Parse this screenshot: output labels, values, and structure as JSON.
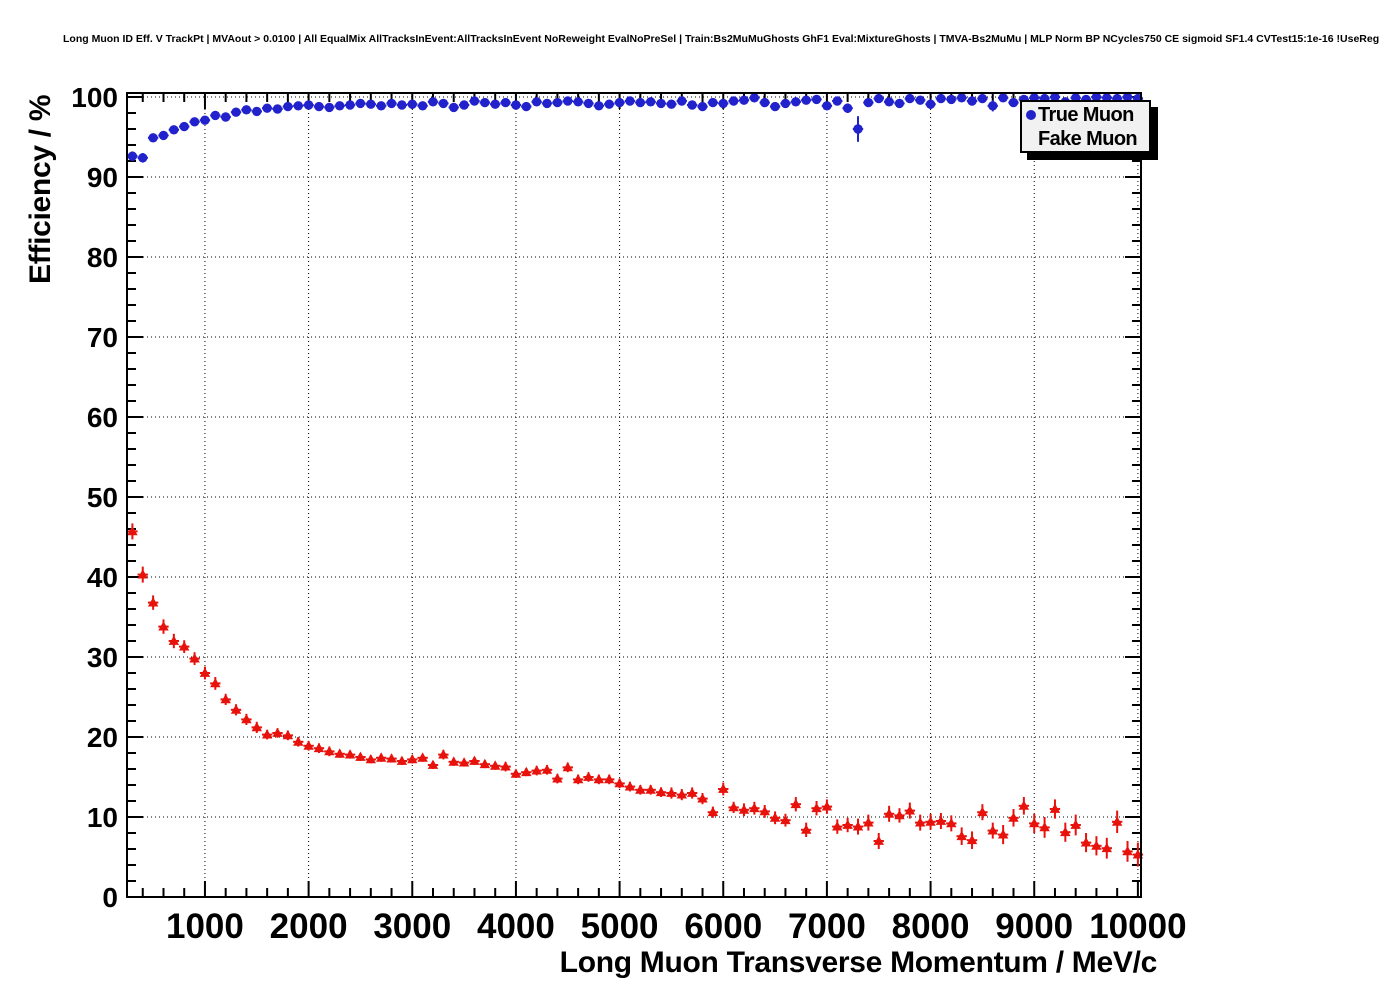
{
  "header": {
    "title": "Long Muon ID Eff. V TrackPt | MVAout > 0.0100 | All EqualMix AllTracksInEvent:AllTracksInEvent NoReweight EvalNoPreSel | Train:Bs2MuMuGhosts GhF1 Eval:MixtureGhosts | TMVA-Bs2MuMu | MLP Norm BP NCycles750 CE sigmoid SF1.4 CVTest15:1e-16 !UseReg"
  },
  "legend": {
    "position": "top-right",
    "entries": [
      {
        "label": "True Muon",
        "marker": "circle",
        "color": "#2222cc"
      },
      {
        "label": "Fake Muon",
        "marker": "triangle",
        "color": "#e8120c"
      }
    ]
  },
  "chart_data": {
    "type": "scatter",
    "title": "Long Muon ID Eff. V TrackPt | MVAout > 0.0100 | All EqualMix AllTracksInEvent:AllTracksInEvent NoReweight EvalNoPreSel | Train:Bs2MuMuGhosts GhF1 Eval:MixtureGhosts | TMVA-Bs2MuMu | MLP Norm BP NCycles750 CE sigmoid SF1.4 CVTest15:1e-16 !UseReg",
    "xlabel": "Long Muon Transverse Momentum / MeV/c",
    "ylabel": "Efficiency / %",
    "xlim": [
      248,
      10030
    ],
    "ylim": [
      0,
      100.5
    ],
    "x_major_ticks": [
      1000,
      2000,
      3000,
      4000,
      5000,
      6000,
      7000,
      8000,
      9000,
      10000
    ],
    "x_minor_step": 200,
    "y_major_ticks": [
      0,
      10,
      20,
      30,
      40,
      50,
      60,
      70,
      80,
      90,
      100
    ],
    "y_minor_step": 2,
    "grid": "dotted-at-major-ticks",
    "legend_position": "top-right",
    "bin_half_width": 50,
    "x": [
      300,
      400,
      500,
      600,
      700,
      800,
      900,
      1000,
      1100,
      1200,
      1300,
      1400,
      1500,
      1600,
      1700,
      1800,
      1900,
      2000,
      2100,
      2200,
      2300,
      2400,
      2500,
      2600,
      2700,
      2800,
      2900,
      3000,
      3100,
      3200,
      3300,
      3400,
      3500,
      3600,
      3700,
      3800,
      3900,
      4000,
      4100,
      4200,
      4300,
      4400,
      4500,
      4600,
      4700,
      4800,
      4900,
      5000,
      5100,
      5200,
      5300,
      5400,
      5500,
      5600,
      5700,
      5800,
      5900,
      6000,
      6100,
      6200,
      6300,
      6400,
      6500,
      6600,
      6700,
      6800,
      6900,
      7000,
      7100,
      7200,
      7300,
      7400,
      7500,
      7600,
      7700,
      7800,
      7900,
      8000,
      8100,
      8200,
      8300,
      8400,
      8500,
      8600,
      8700,
      8800,
      8900,
      9000,
      9100,
      9200,
      9300,
      9400,
      9500,
      9600,
      9700,
      9800,
      9900,
      10000
    ],
    "series": [
      {
        "name": "True Muon",
        "marker": "circle",
        "color": "#2222cc",
        "values": [
          92.6,
          92.4,
          94.9,
          95.2,
          95.9,
          96.3,
          96.9,
          97.1,
          97.7,
          97.5,
          98.1,
          98.4,
          98.2,
          98.6,
          98.5,
          98.8,
          98.9,
          99.0,
          98.8,
          98.7,
          98.9,
          99.0,
          99.2,
          99.1,
          98.9,
          99.2,
          99.0,
          99.1,
          98.9,
          99.4,
          99.2,
          98.7,
          99.0,
          99.5,
          99.3,
          99.1,
          99.3,
          99.0,
          98.8,
          99.4,
          99.2,
          99.3,
          99.5,
          99.4,
          99.2,
          98.9,
          99.1,
          99.3,
          99.5,
          99.3,
          99.4,
          99.2,
          99.1,
          99.5,
          99.0,
          98.8,
          99.3,
          99.2,
          99.5,
          99.6,
          99.9,
          99.3,
          98.8,
          99.2,
          99.4,
          99.6,
          99.7,
          98.9,
          99.5,
          98.6,
          96.0,
          99.3,
          99.8,
          99.4,
          99.2,
          99.8,
          99.6,
          99.1,
          99.8,
          99.7,
          99.9,
          99.5,
          99.8,
          98.9,
          99.9,
          99.3,
          99.7,
          99.9,
          99.8,
          100.0,
          99.4,
          99.9,
          99.7,
          100.0,
          99.9,
          99.8,
          100.0,
          99.8
        ],
        "errors": [
          0.6,
          0.6,
          0.5,
          0.5,
          0.4,
          0.4,
          0.4,
          0.4,
          0.3,
          0.3,
          0.3,
          0.3,
          0.3,
          0.3,
          0.3,
          0.3,
          0.3,
          0.3,
          0.3,
          0.3,
          0.3,
          0.3,
          0.2,
          0.2,
          0.3,
          0.2,
          0.3,
          0.3,
          0.3,
          0.2,
          0.3,
          0.3,
          0.3,
          0.2,
          0.3,
          0.3,
          0.3,
          0.3,
          0.3,
          0.3,
          0.3,
          0.3,
          0.3,
          0.3,
          0.3,
          0.4,
          0.3,
          0.3,
          0.3,
          0.3,
          0.3,
          0.4,
          0.4,
          0.3,
          0.4,
          0.4,
          0.4,
          0.3,
          0.3,
          0.3,
          0.2,
          0.4,
          0.5,
          0.4,
          0.4,
          0.3,
          0.3,
          0.5,
          0.4,
          0.6,
          1.6,
          0.5,
          0.3,
          0.4,
          0.5,
          0.3,
          0.4,
          0.6,
          0.3,
          0.3,
          0.2,
          0.4,
          0.3,
          0.7,
          0.2,
          0.5,
          0.4,
          0.2,
          0.3,
          0.3,
          0.5,
          0.3,
          0.4,
          0.2,
          0.3,
          0.3,
          0.2,
          0.4
        ]
      },
      {
        "name": "Fake Muon",
        "marker": "triangle",
        "color": "#e8120c",
        "values": [
          45.7,
          40.3,
          36.8,
          33.8,
          32.0,
          31.3,
          29.8,
          28.0,
          26.7,
          24.7,
          23.4,
          22.2,
          21.2,
          20.3,
          20.5,
          20.2,
          19.4,
          18.9,
          18.6,
          18.2,
          17.9,
          17.8,
          17.5,
          17.2,
          17.4,
          17.3,
          17.0,
          17.2,
          17.4,
          16.5,
          17.8,
          16.9,
          16.8,
          17.0,
          16.6,
          16.4,
          16.3,
          15.4,
          15.6,
          15.8,
          15.9,
          14.8,
          16.2,
          14.7,
          15.0,
          14.7,
          14.7,
          14.2,
          13.8,
          13.4,
          13.4,
          13.1,
          13.0,
          12.8,
          13.0,
          12.3,
          10.6,
          13.5,
          11.2,
          10.9,
          11.1,
          10.7,
          9.9,
          9.6,
          11.6,
          8.4,
          11.1,
          11.3,
          8.8,
          9.0,
          8.8,
          9.3,
          7.0,
          10.4,
          10.2,
          10.8,
          9.3,
          9.4,
          9.5,
          9.2,
          7.6,
          7.1,
          10.6,
          8.3,
          7.8,
          9.9,
          11.4,
          9.2,
          8.7,
          11.0,
          8.1,
          9.0,
          6.8,
          6.4,
          6.1,
          9.4,
          5.7,
          5.3
        ],
        "errors": [
          1.0,
          1.0,
          0.9,
          0.9,
          0.9,
          0.8,
          0.8,
          0.8,
          0.8,
          0.7,
          0.7,
          0.7,
          0.7,
          0.6,
          0.6,
          0.6,
          0.6,
          0.6,
          0.6,
          0.6,
          0.5,
          0.5,
          0.5,
          0.5,
          0.5,
          0.5,
          0.5,
          0.5,
          0.5,
          0.5,
          0.6,
          0.5,
          0.5,
          0.5,
          0.5,
          0.5,
          0.6,
          0.5,
          0.5,
          0.6,
          0.6,
          0.6,
          0.6,
          0.6,
          0.6,
          0.6,
          0.6,
          0.6,
          0.6,
          0.6,
          0.6,
          0.6,
          0.7,
          0.7,
          0.7,
          0.7,
          0.7,
          0.8,
          0.7,
          0.8,
          0.8,
          0.8,
          0.8,
          0.8,
          0.9,
          0.9,
          0.9,
          0.9,
          0.9,
          0.9,
          1.0,
          1.0,
          1.0,
          1.0,
          0.9,
          1.0,
          1.0,
          1.0,
          1.0,
          1.0,
          1.1,
          1.1,
          1.0,
          1.0,
          1.2,
          1.1,
          1.1,
          1.2,
          1.3,
          1.2,
          1.2,
          1.3,
          1.2,
          1.2,
          1.3,
          1.4,
          1.3,
          1.5
        ]
      }
    ]
  }
}
